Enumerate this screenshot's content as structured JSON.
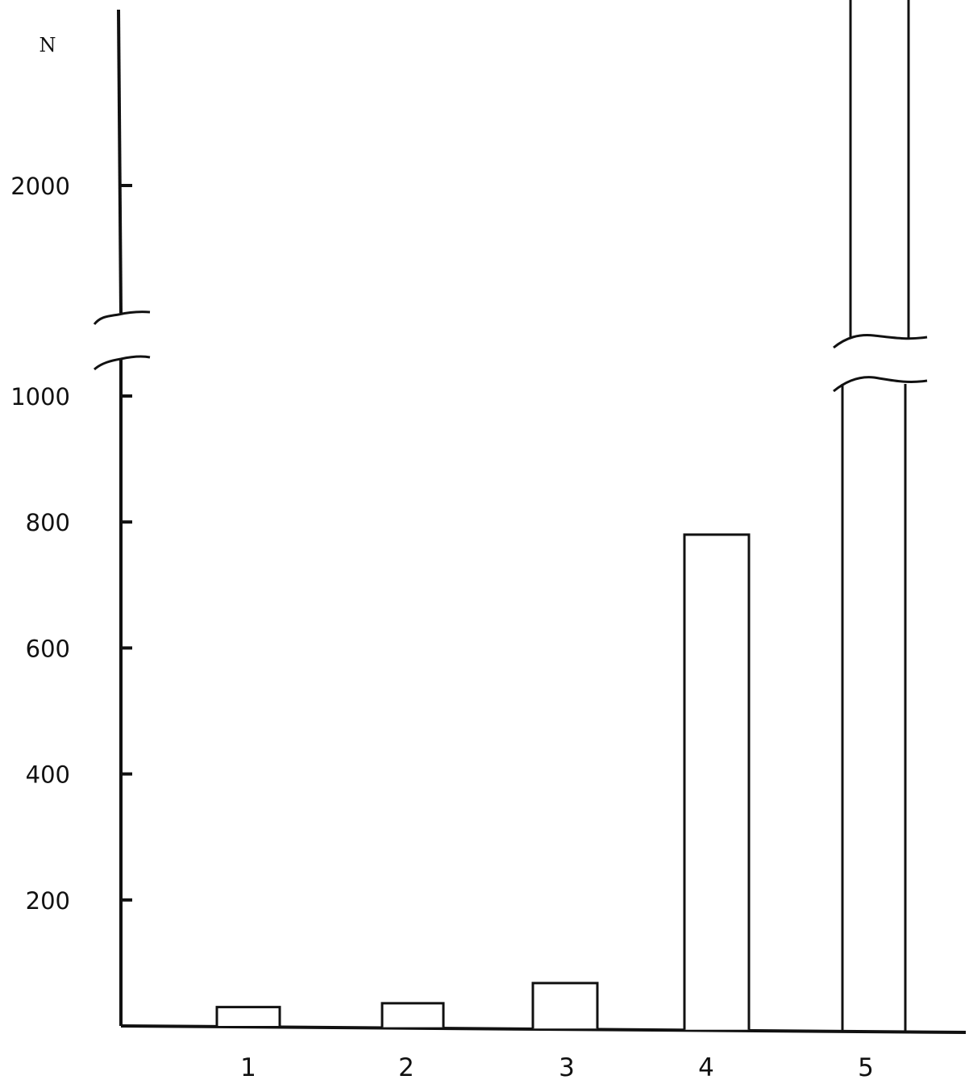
{
  "chart_data": {
    "type": "bar",
    "title": "",
    "xlabel": "",
    "ylabel": "N",
    "categories": [
      "1",
      "2",
      "3",
      "4",
      "5"
    ],
    "values": [
      30,
      36,
      68,
      780,
      2300
    ],
    "y_ticks": [
      200,
      400,
      600,
      800,
      1000,
      2000
    ],
    "y_tick_labels": [
      "200",
      "400",
      "600",
      "800",
      "1000",
      "2000"
    ],
    "ylim": [
      0,
      2600
    ],
    "axis_break": [
      1050,
      1900
    ],
    "grid": false,
    "legend": "none",
    "bar_color": "#ffffff",
    "stroke_color": "#111111"
  }
}
